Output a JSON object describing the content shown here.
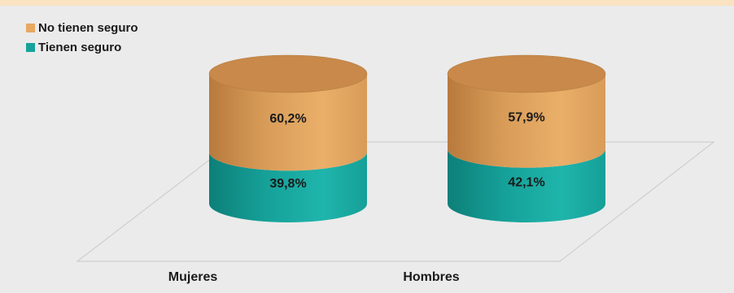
{
  "chart_data": {
    "type": "bar",
    "categories": [
      "Mujeres",
      "Hombres"
    ],
    "series": [
      {
        "name": "Tienen seguro",
        "values": [
          39.8,
          42.1
        ],
        "labels": [
          "39,8%",
          "42,1%"
        ],
        "color": "#16a39a"
      },
      {
        "name": "No tienen seguro",
        "values": [
          60.2,
          57.9
        ],
        "labels": [
          "60,2%",
          "57,9%"
        ],
        "color": "#e0a25a"
      }
    ],
    "stacked": true,
    "shape": "cylinder",
    "ylim": [
      0,
      100
    ],
    "legend_position": "top-left",
    "title": "",
    "xlabel": "",
    "ylabel": ""
  },
  "legend": {
    "items": [
      {
        "label": "No tienen seguro",
        "color": "#e8a862"
      },
      {
        "label": "Tienen seguro",
        "color": "#16a39a"
      }
    ]
  }
}
